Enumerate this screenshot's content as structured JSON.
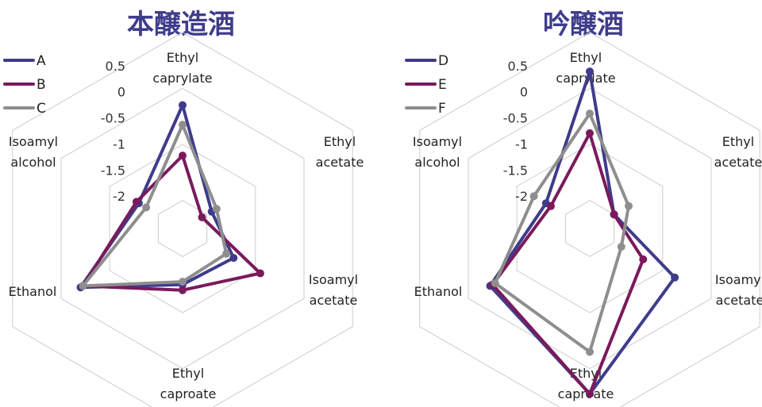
{
  "chart_data": [
    {
      "type": "radar",
      "title": "本醸造酒",
      "axes": [
        "Ethyl caprylate",
        "Ethyl acetate",
        "Isoamyl acetate",
        "Ethyl caproate",
        "Ethanol",
        "Isoamyl alcohol"
      ],
      "axis_label_lines": [
        [
          "Ethyl",
          "caprylate"
        ],
        [
          "Ethyl",
          "acetate"
        ],
        [
          "Isoamyl",
          "acetate"
        ],
        [
          "Ethyl",
          "caproate"
        ],
        [
          "Ethanol"
        ],
        [
          "Isoamyl",
          "alcohol"
        ]
      ],
      "ticks": [
        "0.5",
        "0",
        "-0.5",
        "-1",
        "-1.5",
        "-2"
      ],
      "rlim": [
        -2.5,
        0.5
      ],
      "grid_levels": [
        -2,
        -1,
        0,
        1
      ],
      "legend_position": "top-left",
      "series": [
        {
          "name": "A",
          "color": "#3f3c8c",
          "values": [
            -0.3,
            -1.9,
            -1.45,
            -1.5,
            -0.4,
            -1.6
          ]
        },
        {
          "name": "B",
          "color": "#7a1a5c",
          "values": [
            -1.2,
            -2.1,
            -0.9,
            -1.4,
            -0.45,
            -1.55
          ]
        },
        {
          "name": "C",
          "color": "#8e8e8e",
          "values": [
            -0.65,
            -1.8,
            -1.6,
            -1.55,
            -0.45,
            -1.75
          ]
        }
      ]
    },
    {
      "type": "radar",
      "title": "吟醸酒",
      "axes": [
        "Ethyl caprylate",
        "Ethyl acetate",
        "Isoamyl acetate",
        "Ethyl caproate",
        "Ethanol",
        "Isoamyl alcohol"
      ],
      "axis_label_lines": [
        [
          "Ethyl",
          "caprylate"
        ],
        [
          "Ethyl",
          "acetate"
        ],
        [
          "Isoamyl",
          "acetate"
        ],
        [
          "Ethyl",
          "caproate"
        ],
        [
          "Ethanol"
        ],
        [
          "Isoamyl",
          "alcohol"
        ]
      ],
      "ticks": [
        "0.5",
        "0",
        "-0.5",
        "-1",
        "-1.5",
        "-2"
      ],
      "rlim": [
        -2.5,
        0.5
      ],
      "grid_levels": [
        -2,
        -1,
        0,
        1
      ],
      "legend_position": "top-left",
      "series": [
        {
          "name": "D",
          "color": "#3f3c8c",
          "values": [
            0.3,
            -2.0,
            -0.75,
            0.45,
            -0.45,
            -1.6
          ]
        },
        {
          "name": "E",
          "color": "#7a1a5c",
          "values": [
            -0.8,
            -2.0,
            -1.4,
            0.45,
            -0.5,
            -1.7
          ]
        },
        {
          "name": "F",
          "color": "#8e8e8e",
          "values": [
            -0.45,
            -1.7,
            -1.85,
            -0.3,
            -0.55,
            -1.35
          ]
        }
      ]
    }
  ]
}
